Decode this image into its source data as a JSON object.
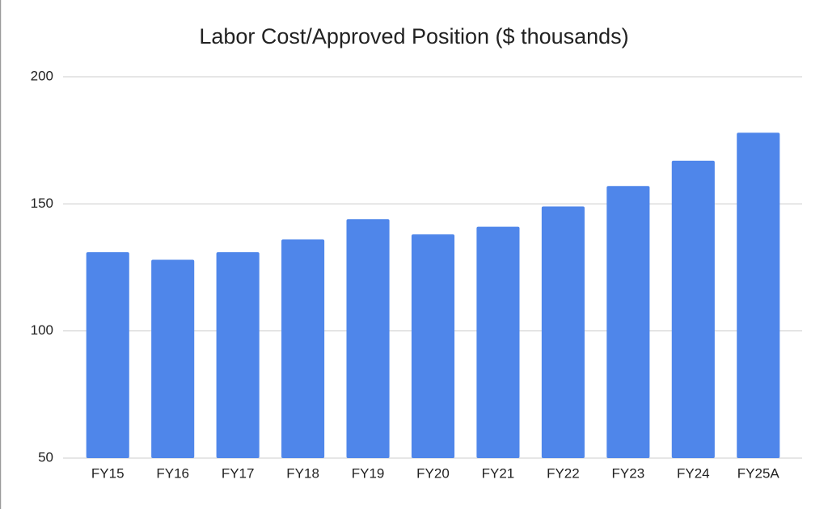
{
  "chart_data": {
    "type": "bar",
    "title": "Labor Cost/Approved Position ($ thousands)",
    "categories": [
      "FY15",
      "FY16",
      "FY17",
      "FY18",
      "FY19",
      "FY20",
      "FY21",
      "FY22",
      "FY23",
      "FY24",
      "FY25A"
    ],
    "values": [
      131,
      128,
      131,
      136,
      144,
      138,
      141,
      149,
      157,
      167,
      178
    ],
    "color": "#4f86ea",
    "title_color": "#e8352b",
    "ylim": [
      50,
      200
    ],
    "yticks": [
      50,
      100,
      150,
      200
    ],
    "grid": true
  }
}
